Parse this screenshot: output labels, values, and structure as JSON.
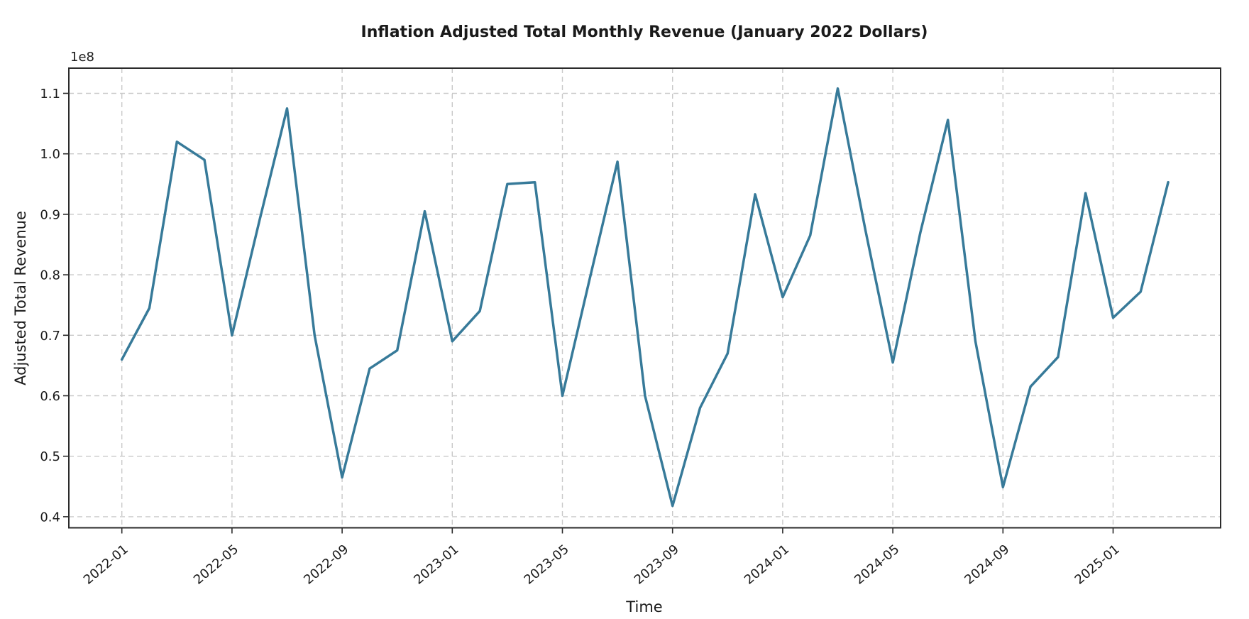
{
  "chart_data": {
    "type": "line",
    "title": "Inflation Adjusted Total Monthly Revenue (January 2022 Dollars)",
    "xlabel": "Time",
    "ylabel": "Adjusted Total Revenue",
    "y_offset_label": "1e8",
    "unit_multiplier": 100000000.0,
    "x": [
      "2022-01",
      "2022-02",
      "2022-03",
      "2022-04",
      "2022-05",
      "2022-06",
      "2022-07",
      "2022-08",
      "2022-09",
      "2022-10",
      "2022-11",
      "2022-12",
      "2023-01",
      "2023-02",
      "2023-03",
      "2023-04",
      "2023-05",
      "2023-06",
      "2023-07",
      "2023-08",
      "2023-09",
      "2023-10",
      "2023-11",
      "2023-12",
      "2024-01",
      "2024-02",
      "2024-03",
      "2024-04",
      "2024-05",
      "2024-06",
      "2024-07",
      "2024-08",
      "2024-09",
      "2024-10",
      "2024-11",
      "2024-12",
      "2025-01",
      "2025-02",
      "2025-03"
    ],
    "values": [
      0.66,
      0.745,
      1.02,
      0.99,
      0.7,
      0.89,
      1.075,
      0.7,
      0.465,
      0.645,
      0.675,
      0.905,
      0.69,
      0.74,
      0.95,
      0.953,
      0.6,
      0.795,
      0.987,
      0.6,
      0.418,
      0.58,
      0.67,
      0.933,
      0.763,
      0.865,
      1.108,
      0.875,
      0.655,
      0.87,
      1.056,
      0.69,
      0.449,
      0.615,
      0.664,
      0.935,
      0.729,
      0.772,
      0.953
    ],
    "x_tick_labels": [
      "2022-01",
      "2022-05",
      "2022-09",
      "2023-01",
      "2023-05",
      "2023-09",
      "2024-01",
      "2024-05",
      "2024-09",
      "2025-01"
    ],
    "y_ticks": [
      0.4,
      0.5,
      0.6,
      0.7,
      0.8,
      0.9,
      1.0,
      1.1
    ],
    "ylim": [
      0.382,
      1.142
    ],
    "grid": true,
    "grid_style": "dashed",
    "legend": "none",
    "line_color": "#377a99",
    "grid_color": "#c9c9c9",
    "spine_color": "#2b2b2b",
    "text_color": "#1a1a1a",
    "line_width": 3.5
  }
}
